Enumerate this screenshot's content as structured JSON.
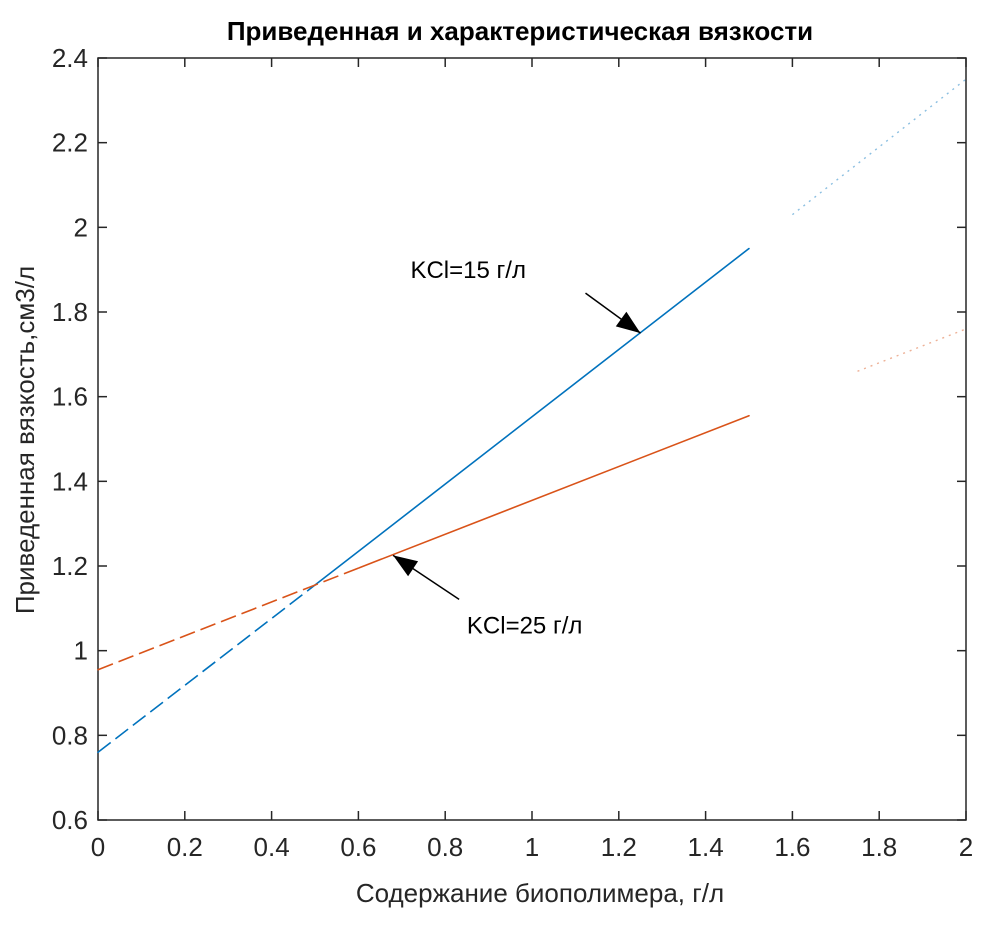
{
  "chart_data": {
    "type": "line",
    "title": "Приведенная и характеристическая вязкости",
    "xlabel": "Содержание биополимера,  г/л",
    "ylabel": "Приведенная вязкость,см3/л",
    "xlim": [
      0,
      2
    ],
    "ylim": [
      0.6,
      2.4
    ],
    "xticks": [
      0,
      0.2,
      0.4,
      0.6,
      0.8,
      1,
      1.2,
      1.4,
      1.6,
      1.8,
      2
    ],
    "xtick_labels": [
      "0",
      "0.2",
      "0.4",
      "0.6",
      "0.8",
      "1",
      "1.2",
      "1.4",
      "1.6",
      "1.8",
      "2"
    ],
    "yticks": [
      0.6,
      0.8,
      1,
      1.2,
      1.4,
      1.6,
      1.8,
      2,
      2.2,
      2.4
    ],
    "ytick_labels": [
      "0.6",
      "0.8",
      "1",
      "1.2",
      "1.4",
      "1.6",
      "1.8",
      "2",
      "2.2",
      "2.4"
    ],
    "grid": false,
    "series": [
      {
        "name": "KCl=15 г/л",
        "color": "#0072bd",
        "x": [
          0,
          0.5,
          1.5
        ],
        "y": [
          0.76,
          1.155,
          1.95
        ],
        "solid_from_x": 0.5,
        "faint_extension": {
          "x": [
            1.6,
            2.0
          ],
          "y": [
            2.03,
            2.35
          ]
        }
      },
      {
        "name": "KCl=25 г/л",
        "color": "#d95319",
        "x": [
          0,
          0.5,
          1.5
        ],
        "y": [
          0.955,
          1.155,
          1.555
        ],
        "solid_from_x": 0.6,
        "faint_extension": {
          "x": [
            1.75,
            2.0
          ],
          "y": [
            1.66,
            1.76
          ]
        }
      }
    ],
    "annotations": [
      {
        "text": "KCl=15 г/л",
        "series": 0,
        "arrow_to_x": 1.25,
        "arrow_to_y": 1.75,
        "text_x": 0.72,
        "text_y": 1.88
      },
      {
        "text": "KCl=25 г/л",
        "series": 1,
        "arrow_to_x": 0.68,
        "arrow_to_y": 1.225,
        "text_x": 0.85,
        "text_y": 1.04
      }
    ]
  }
}
